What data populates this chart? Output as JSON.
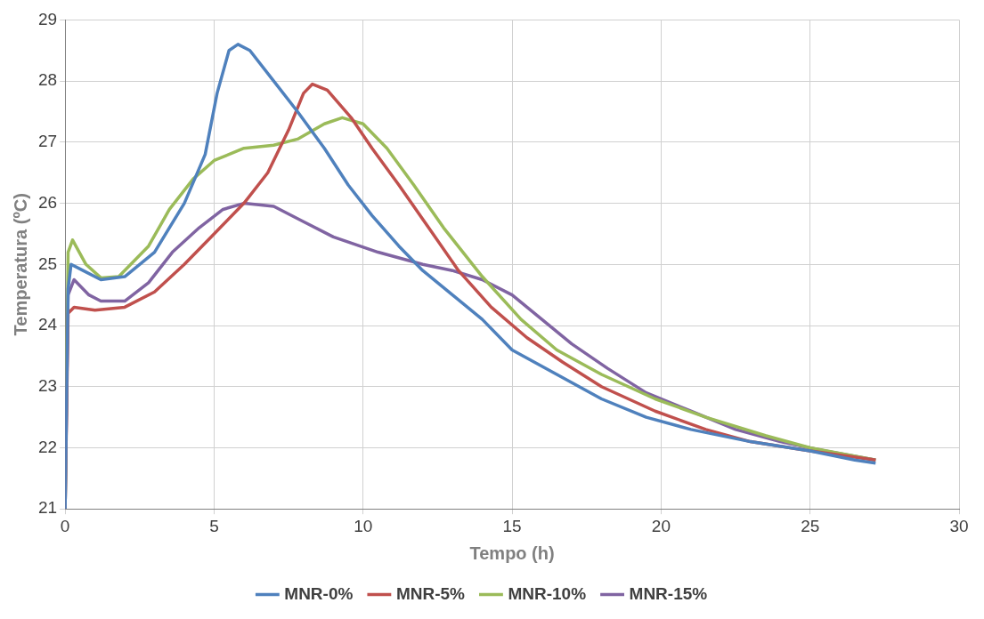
{
  "chart_data": {
    "type": "line",
    "xlabel": "Tempo (h)",
    "ylabel": "Temperatura (ºC)",
    "xlim": [
      0,
      30
    ],
    "xticks": [
      0,
      5,
      10,
      15,
      20,
      25,
      30
    ],
    "ylim": [
      21,
      29
    ],
    "yticks": [
      21,
      22,
      23,
      24,
      25,
      26,
      27,
      28,
      29
    ],
    "grid": true,
    "legend": "bottom",
    "marker": "none",
    "line_style": "solid",
    "series": [
      {
        "name": "MNR-0%",
        "color": "#4f81bd",
        "x": [
          0,
          0.1,
          0.2,
          0.6,
          1.2,
          2,
          3,
          4,
          4.7,
          5.1,
          5.5,
          5.8,
          6.2,
          7,
          7.8,
          8.7,
          9.5,
          10.3,
          11.2,
          12,
          13,
          14,
          15,
          16.5,
          18,
          19.5,
          21,
          23,
          25,
          26.5,
          27.2
        ],
        "values": [
          21,
          24.6,
          25,
          24.9,
          24.75,
          24.8,
          25.2,
          26,
          26.8,
          27.8,
          28.5,
          28.6,
          28.5,
          28,
          27.5,
          26.9,
          26.3,
          25.8,
          25.3,
          24.9,
          24.5,
          24.1,
          23.6,
          23.2,
          22.8,
          22.5,
          22.3,
          22.1,
          21.95,
          21.8,
          21.75
        ]
      },
      {
        "name": "MNR-5%",
        "color": "#c0504d",
        "x": [
          0,
          0.1,
          0.3,
          1,
          2,
          3,
          4,
          5,
          6,
          6.8,
          7.5,
          8,
          8.3,
          8.8,
          9.6,
          10.3,
          11.2,
          12.2,
          13.2,
          14.3,
          15.5,
          16.7,
          18,
          19.8,
          21.5,
          23,
          25,
          27.2
        ],
        "values": [
          21,
          24.2,
          24.3,
          24.25,
          24.3,
          24.55,
          25,
          25.5,
          26,
          26.5,
          27.2,
          27.8,
          27.95,
          27.85,
          27.4,
          26.9,
          26.3,
          25.6,
          24.9,
          24.3,
          23.8,
          23.4,
          23,
          22.6,
          22.3,
          22.1,
          21.95,
          21.8
        ]
      },
      {
        "name": "MNR-10%",
        "color": "#9bbb59",
        "x": [
          0,
          0.1,
          0.25,
          0.7,
          1.2,
          1.8,
          2.8,
          3.5,
          4.3,
          5,
          6,
          7,
          7.8,
          8.7,
          9.3,
          10,
          10.8,
          11.7,
          12.7,
          14,
          15.3,
          16.5,
          18,
          19.8,
          21.5,
          23.5,
          25,
          27.2
        ],
        "values": [
          21,
          25.2,
          25.4,
          25,
          24.78,
          24.8,
          25.3,
          25.9,
          26.4,
          26.7,
          26.9,
          26.95,
          27.05,
          27.3,
          27.4,
          27.3,
          26.9,
          26.3,
          25.6,
          24.8,
          24.1,
          23.6,
          23.2,
          22.8,
          22.5,
          22.2,
          22,
          21.8
        ]
      },
      {
        "name": "MNR-15%",
        "color": "#8064a2",
        "x": [
          0,
          0.1,
          0.3,
          0.8,
          1.2,
          2,
          2.8,
          3.6,
          4.5,
          5.3,
          6,
          7,
          8,
          9,
          10.5,
          12,
          13,
          14,
          15,
          16,
          17,
          18.2,
          19.5,
          21,
          22.5,
          24,
          25.5,
          27.2
        ],
        "values": [
          21,
          24.5,
          24.75,
          24.5,
          24.4,
          24.4,
          24.7,
          25.2,
          25.6,
          25.9,
          26,
          25.95,
          25.7,
          25.45,
          25.2,
          25,
          24.9,
          24.75,
          24.5,
          24.1,
          23.7,
          23.3,
          22.9,
          22.6,
          22.3,
          22.1,
          21.95,
          21.8
        ]
      }
    ]
  }
}
